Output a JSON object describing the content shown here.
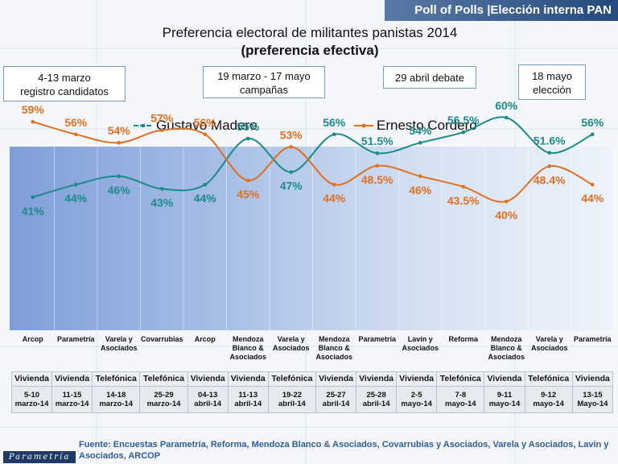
{
  "banner": "Poll of Polls |Elección interna PAN",
  "footer": "Fuente: Encuestas Parametría, Reforma, Mendoza Blanco & Asociados, Covarrubias y Asociados, Varela y Asociados, Lavin y Asociados, ARCOP",
  "logo": "Parametría",
  "phases": [
    "4-13 marzo\nregistro candidatos",
    "19 marzo - 17 mayo\ncampañas",
    "29 abril debate",
    "18 mayo\nelección"
  ],
  "methods": [
    "Vivienda",
    "Vivienda",
    "Telefónica",
    "Telefónica",
    "Vivienda",
    "Vivienda",
    "Telefónica",
    "Vivienda",
    "Vivienda",
    "Vivienda",
    "Telefónica",
    "Vivienda",
    "Telefónica",
    "Vivienda"
  ],
  "dates": [
    "5-10\nmarzo-14",
    "11-15\nmarzo-14",
    "14-18\nmarzo-14",
    "25-29\nmarzo-14",
    "04-13\nabril-14",
    "11-13\nabril-14",
    "19-22\nabril-14",
    "25-27\nabril-14",
    "25-28\nabril-14",
    "2-5\nmayo-14",
    "7-8\nmayo-14",
    "9-11\nmayo-14",
    "9-12\nmayo-14",
    "13-15\nMayo-14"
  ],
  "colors": {
    "madero": "#1a8a8a",
    "cordero": "#e07020",
    "banner": "#244a7e"
  },
  "chart_data": {
    "type": "line",
    "title": "Preferencia electoral de militantes panistas 2014",
    "subtitle": "(preferencia efectiva)",
    "categories": [
      "Arcop",
      "Parametría",
      "Varela y Asociados",
      "Covarrubias",
      "Arcop",
      "Mendoza Blanco & Asociados",
      "Varela y Asociados",
      "Mendoza Blanco & Asociados",
      "Parametría",
      "Lavín y Asociados",
      "Reforma",
      "Mendoza Blanco & Asociados",
      "Varela y Asociados",
      "Parametría"
    ],
    "series": [
      {
        "name": "Gustavo Madero",
        "values": [
          41,
          44,
          46,
          43,
          44,
          55,
          47,
          56,
          51.5,
          54,
          56.5,
          60,
          51.6,
          56
        ],
        "labels": [
          "41%",
          "44%",
          "46%",
          "43%",
          "44%",
          "55%",
          "47%",
          "56%",
          "51.5%",
          "54%",
          "56.5%",
          "60%",
          "51.6%",
          "56%"
        ]
      },
      {
        "name": "Ernesto Cordero",
        "values": [
          59,
          56,
          54,
          57,
          56,
          45,
          53,
          44,
          48.5,
          46,
          43.5,
          40,
          48.4,
          44
        ],
        "labels": [
          "59%",
          "56%",
          "54%",
          "57%",
          "56%",
          "45%",
          "53%",
          "44%",
          "48.5%",
          "46%",
          "43.5%",
          "40%",
          "48.4%",
          "44%"
        ]
      }
    ],
    "ylim": [
      0,
      100
    ],
    "legend_position": "top"
  }
}
